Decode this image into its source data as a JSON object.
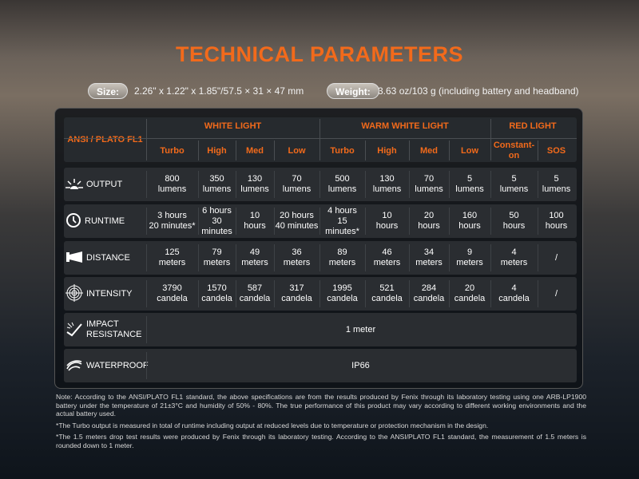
{
  "title": "TECHNICAL PARAMETERS",
  "size": {
    "label": "Size:",
    "value": "2.26\" x 1.22\" x 1.85\"/57.5 × 31 × 47 mm"
  },
  "weight": {
    "label": "Weight:",
    "value": "3.63 oz/103 g (including battery and headband)"
  },
  "table": {
    "corner": "ANSI / PLATO FL1",
    "groups": [
      "WHITE LIGHT",
      "WARM WHITE LIGHT",
      "RED LIGHT"
    ],
    "modes": [
      "Turbo",
      "High",
      "Med",
      "Low",
      "Turbo",
      "High",
      "Med",
      "Low",
      "Constant-on",
      "SOS"
    ],
    "accent": "#f26a1b",
    "rows": [
      {
        "label": "OUTPUT",
        "icon": "light-burst-icon",
        "cells": [
          [
            "800",
            "lumens"
          ],
          [
            "350",
            "lumens"
          ],
          [
            "130",
            "lumens"
          ],
          [
            "70",
            "lumens"
          ],
          [
            "500",
            "lumens"
          ],
          [
            "130",
            "lumens"
          ],
          [
            "70",
            "lumens"
          ],
          [
            "5",
            "lumens"
          ],
          [
            "5",
            "lumens"
          ],
          [
            "5",
            "lumens"
          ]
        ]
      },
      {
        "label": "RUNTIME",
        "icon": "clock-icon",
        "cells": [
          [
            "3 hours",
            "20 minutes*"
          ],
          [
            "6 hours",
            "30 minutes"
          ],
          [
            "10",
            "hours"
          ],
          [
            "20 hours",
            "40 minutes"
          ],
          [
            "4 hours",
            "15 minutes*"
          ],
          [
            "10",
            "hours"
          ],
          [
            "20",
            "hours"
          ],
          [
            "160",
            "hours"
          ],
          [
            "50",
            "hours"
          ],
          [
            "100",
            "hours"
          ]
        ]
      },
      {
        "label": "DISTANCE",
        "icon": "beam-distance-icon",
        "cells": [
          [
            "125",
            "meters"
          ],
          [
            "79",
            "meters"
          ],
          [
            "49",
            "meters"
          ],
          [
            "36",
            "meters"
          ],
          [
            "89",
            "meters"
          ],
          [
            "46",
            "meters"
          ],
          [
            "34",
            "meters"
          ],
          [
            "9",
            "meters"
          ],
          [
            "4",
            "meters"
          ],
          [
            "/",
            ""
          ]
        ]
      },
      {
        "label": "INTENSITY",
        "icon": "target-icon",
        "cells": [
          [
            "3790",
            "candela"
          ],
          [
            "1570",
            "candela"
          ],
          [
            "587",
            "candela"
          ],
          [
            "317",
            "candela"
          ],
          [
            "1995",
            "candela"
          ],
          [
            "521",
            "candela"
          ],
          [
            "284",
            "candela"
          ],
          [
            "20",
            "candela"
          ],
          [
            "4",
            "candela"
          ],
          [
            "/",
            ""
          ]
        ]
      }
    ],
    "impact": {
      "label1": "IMPACT",
      "label2": "RESISTANCE",
      "value": "1 meter",
      "icon": "impact-icon"
    },
    "waterproof": {
      "label": "WATERPROOF",
      "value": "IP66",
      "icon": "water-icon"
    }
  },
  "notes": [
    "Note: According to the ANSI/PLATO FL1 standard, the above specifications are from the results produced by Fenix through its laboratory testing using one ARB-LP1900 battery under the temperature of 21±3°C and humidity of 50% - 80%. The true performance of this product may vary according to different working environments and the actual battery used.",
    "*The Turbo output is measured in total of runtime including output at reduced levels due to temperature or protection mechanism in the design.",
    "*The 1.5 meters drop test results were produced by Fenix through its laboratory testing. According to the ANSI/PLATO FL1 standard, the measurement of 1.5 meters is rounded down to 1 meter."
  ]
}
